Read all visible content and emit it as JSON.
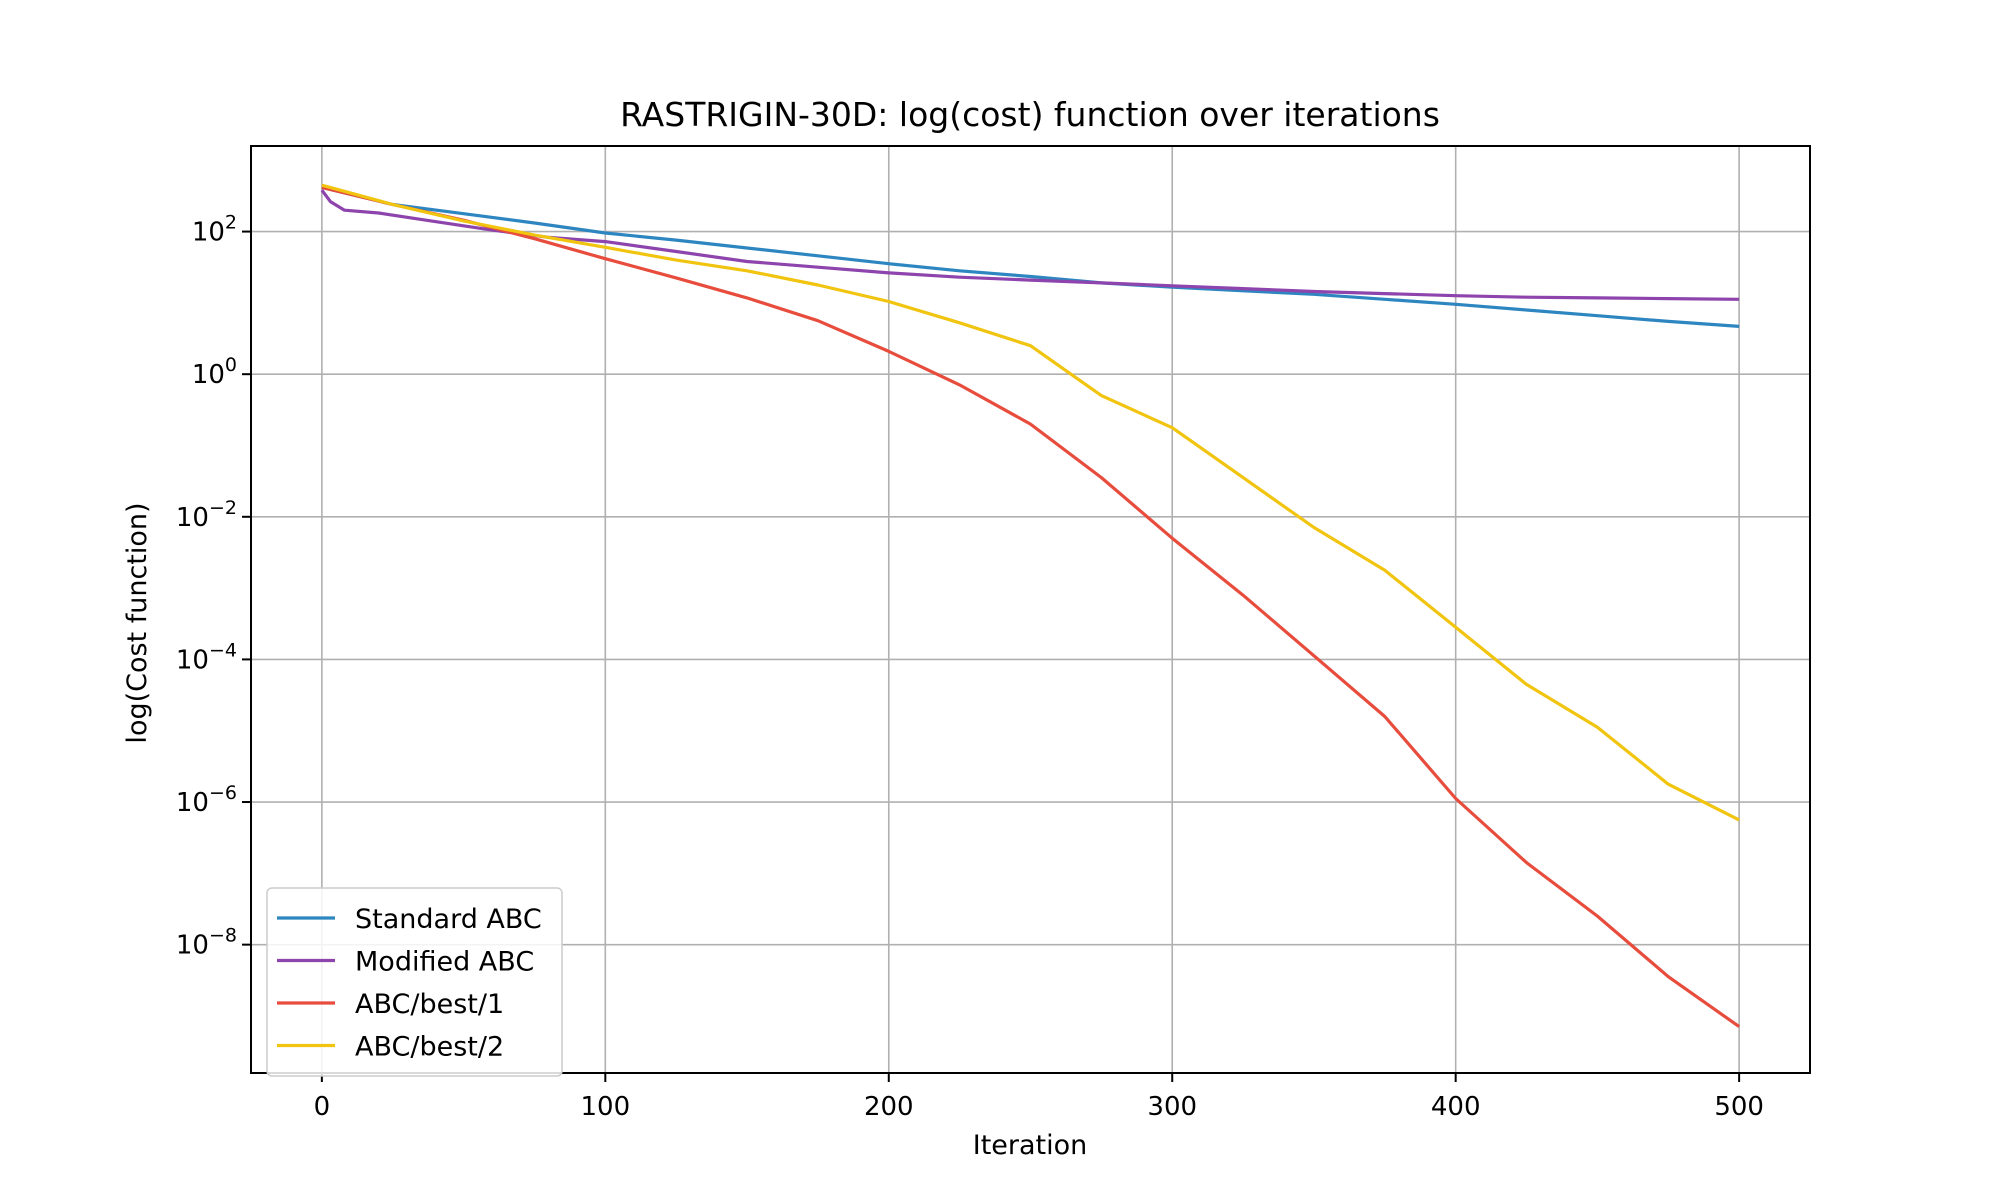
{
  "chart_data": {
    "type": "line",
    "title": "RASTRIGIN-30D: log(cost) function over iterations",
    "xlabel": "Iteration",
    "ylabel": "log(Cost function)",
    "xlim": [
      -25,
      525
    ],
    "xticks": [
      0,
      100,
      200,
      300,
      400,
      500
    ],
    "yscale": "log",
    "ylim_exp": [
      -9.8,
      3.2
    ],
    "yticks_exp": [
      2,
      0,
      -2,
      -4,
      -6,
      -8
    ],
    "ytick_base": "10",
    "grid": true,
    "legend_position": "lower-left",
    "series": [
      {
        "name": "Standard ABC",
        "color": "#2e86c1",
        "x": [
          0,
          25,
          50,
          75,
          100,
          125,
          150,
          175,
          200,
          225,
          250,
          275,
          300,
          325,
          350,
          375,
          400,
          425,
          450,
          475,
          500
        ],
        "log10_y": [
          2.62,
          2.38,
          2.25,
          2.12,
          1.98,
          1.88,
          1.77,
          1.66,
          1.55,
          1.45,
          1.37,
          1.28,
          1.22,
          1.17,
          1.12,
          1.05,
          0.98,
          0.9,
          0.82,
          0.74,
          0.67
        ]
      },
      {
        "name": "Modified ABC",
        "color": "#8e44ad",
        "x": [
          0,
          3,
          8,
          20,
          40,
          60,
          80,
          100,
          125,
          150,
          175,
          200,
          225,
          250,
          275,
          300,
          325,
          350,
          375,
          400,
          425,
          450,
          475,
          500
        ],
        "log10_y": [
          2.58,
          2.42,
          2.3,
          2.26,
          2.14,
          2.02,
          1.92,
          1.86,
          1.72,
          1.58,
          1.5,
          1.42,
          1.36,
          1.32,
          1.28,
          1.24,
          1.2,
          1.16,
          1.13,
          1.1,
          1.08,
          1.07,
          1.06,
          1.05
        ]
      },
      {
        "name": "ABC/best/1",
        "color": "#e74c3c",
        "x": [
          0,
          25,
          50,
          75,
          100,
          125,
          150,
          175,
          200,
          225,
          250,
          275,
          300,
          325,
          350,
          375,
          400,
          425,
          450,
          475,
          500
        ],
        "log10_y": [
          2.62,
          2.38,
          2.16,
          1.9,
          1.62,
          1.35,
          1.07,
          0.75,
          0.32,
          -0.15,
          -0.7,
          -1.45,
          -2.3,
          -3.1,
          -3.95,
          -4.8,
          -5.95,
          -6.85,
          -7.6,
          -8.45,
          -9.15
        ]
      },
      {
        "name": "ABC/best/2",
        "color": "#f1c40f",
        "x": [
          0,
          25,
          50,
          75,
          100,
          125,
          150,
          175,
          200,
          225,
          250,
          275,
          300,
          325,
          350,
          375,
          400,
          425,
          450,
          475,
          500
        ],
        "log10_y": [
          2.65,
          2.38,
          2.15,
          1.95,
          1.78,
          1.6,
          1.45,
          1.25,
          1.02,
          0.72,
          0.4,
          -0.3,
          -0.75,
          -1.45,
          -2.15,
          -2.75,
          -3.55,
          -4.35,
          -4.95,
          -5.75,
          -6.25
        ]
      }
    ]
  }
}
